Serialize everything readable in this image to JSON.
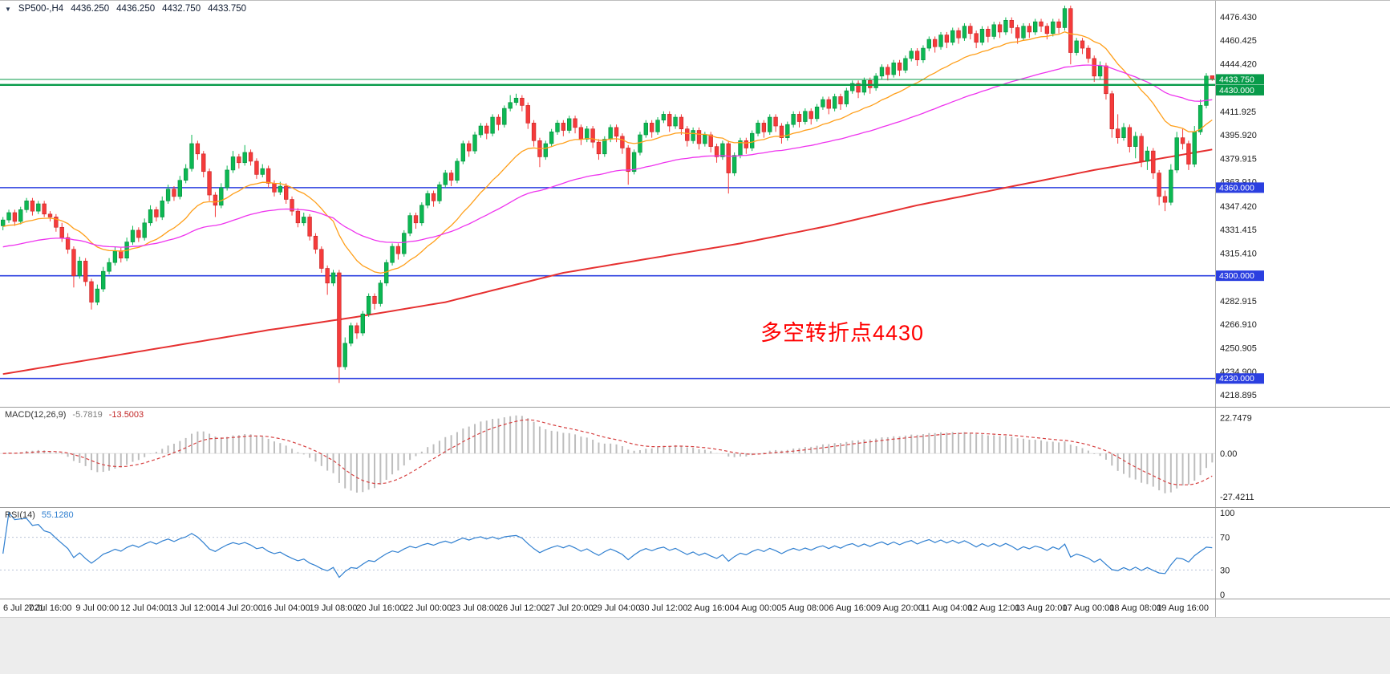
{
  "title": {
    "symbol_dropdown": "▼",
    "symbol_period": "SP500-,H4",
    "open": "4436.250",
    "high": "4436.250",
    "low": "4432.750",
    "close": "4433.750"
  },
  "annotation": {
    "text": "多空转折点4430",
    "color": "#ff0000"
  },
  "indicators": {
    "macd": {
      "label": "MACD(12,26,9)",
      "value_main": "-5.7819",
      "value_signal": "-13.5003",
      "params": {
        "fast": 12,
        "slow": 26,
        "signal": 9
      },
      "axis_labels": [
        "22.7479",
        "0.00",
        "-27.4211"
      ],
      "axis_values": [
        22.7479,
        0,
        -27.4211
      ],
      "scale_max": 26,
      "scale_min": -31,
      "histogram_color": "#bdbdbd",
      "signal_color": "#d64040"
    },
    "rsi": {
      "label": "RSI(14)",
      "value": "55.1280",
      "period": 14,
      "axis_labels": [
        "100",
        "70",
        "30",
        "0"
      ],
      "axis_values": [
        100,
        70,
        30,
        0
      ],
      "levels": [
        70,
        30
      ],
      "line_color": "#2f7fd0"
    }
  },
  "chart_data": {
    "type": "candlestick",
    "symbol": "SP500-",
    "timeframe": "H4",
    "x_label_step": 8,
    "x_labels": [
      "6 Jul 2021",
      "7 Jul 16:00",
      "9 Jul 00:00",
      "12 Jul 04:00",
      "13 Jul 12:00",
      "14 Jul 20:00",
      "16 Jul 04:00",
      "19 Jul 08:00",
      "20 Jul 16:00",
      "22 Jul 00:00",
      "23 Jul 08:00",
      "26 Jul 12:00",
      "27 Jul 20:00",
      "29 Jul 04:00",
      "30 Jul 12:00",
      "2 Aug 16:00",
      "4 Aug 00:00",
      "5 Aug 08:00",
      "6 Aug 16:00",
      "9 Aug 20:00",
      "11 Aug 04:00",
      "12 Aug 12:00",
      "13 Aug 20:00",
      "17 Aug 00:00",
      "18 Aug 08:00",
      "19 Aug 16:00"
    ],
    "y_axis": {
      "price_min": 4214,
      "price_max": 4484,
      "tick_labels": [
        "4476.430",
        "4460.425",
        "4444.420",
        "4411.925",
        "4395.920",
        "4379.915",
        "4363.910",
        "4347.420",
        "4331.415",
        "4315.410",
        "4282.915",
        "4266.910",
        "4250.905",
        "4234.900",
        "4218.895"
      ],
      "tick_values": [
        4476.43,
        4460.425,
        4444.42,
        4411.925,
        4395.92,
        4379.915,
        4363.91,
        4347.42,
        4331.415,
        4315.41,
        4282.915,
        4266.91,
        4250.905,
        4234.9,
        4218.895
      ]
    },
    "bull_color": "#0cb853",
    "bear_color": "#f53b3b",
    "bull_border": "#078a3c",
    "bear_border": "#c42424",
    "moving_averages": [
      {
        "name": "ma-fast-orange",
        "period": 20,
        "seed": 4333,
        "color": "#ff9f1a",
        "width": 1.3
      },
      {
        "name": "ma-mid-magenta",
        "period": 60,
        "seed": 4319,
        "color": "#ee33ee",
        "width": 1.3
      }
    ],
    "slow_ma": {
      "name": "ma-slow-red",
      "color": "#e63030",
      "width": 2,
      "anchors": [
        [
          0,
          4233
        ],
        [
          15,
          4243
        ],
        [
          30,
          4253
        ],
        [
          45,
          4263
        ],
        [
          60,
          4272
        ],
        [
          75,
          4282
        ],
        [
          85,
          4292
        ],
        [
          95,
          4302
        ],
        [
          110,
          4312
        ],
        [
          125,
          4322
        ],
        [
          140,
          4334
        ],
        [
          155,
          4348
        ],
        [
          170,
          4360
        ],
        [
          185,
          4372
        ],
        [
          195,
          4379
        ],
        [
          205,
          4386
        ]
      ]
    },
    "hlines": [
      {
        "price": 4433.75,
        "tag": "4433.750",
        "color": "#089b4a",
        "width": 1,
        "layer": "above"
      },
      {
        "price": 4430,
        "tag": "4430.000",
        "color": "#089b4a",
        "width": 2.4,
        "layer": "above"
      },
      {
        "price": 4360,
        "tag": "4360.000",
        "color": "#2b3fe0",
        "width": 1.6,
        "layer": "below"
      },
      {
        "price": 4300,
        "tag": "4300.000",
        "color": "#2b3fe0",
        "width": 1.6,
        "layer": "below"
      },
      {
        "price": 4230,
        "tag": "4230.000",
        "color": "#2b3fe0",
        "width": 1.6,
        "layer": "below"
      }
    ],
    "candles": [
      [
        4334,
        4340,
        4331,
        4338
      ],
      [
        4338,
        4345,
        4336,
        4343
      ],
      [
        4343,
        4345,
        4334,
        4337
      ],
      [
        4337,
        4347,
        4335,
        4345
      ],
      [
        4345,
        4353,
        4343,
        4351
      ],
      [
        4351,
        4353,
        4341,
        4344
      ],
      [
        4344,
        4351,
        4342,
        4349
      ],
      [
        4349,
        4351,
        4340,
        4342
      ],
      [
        4342,
        4344,
        4337,
        4340
      ],
      [
        4340,
        4342,
        4330,
        4333
      ],
      [
        4333,
        4336,
        4323,
        4326
      ],
      [
        4326,
        4329,
        4315,
        4318
      ],
      [
        4318,
        4320,
        4292,
        4300
      ],
      [
        4300,
        4313,
        4298,
        4310
      ],
      [
        4310,
        4312,
        4293,
        4296
      ],
      [
        4296,
        4298,
        4277,
        4282
      ],
      [
        4282,
        4294,
        4280,
        4291
      ],
      [
        4291,
        4306,
        4289,
        4303
      ],
      [
        4303,
        4312,
        4301,
        4309
      ],
      [
        4309,
        4320,
        4307,
        4317
      ],
      [
        4317,
        4319,
        4309,
        4312
      ],
      [
        4312,
        4326,
        4310,
        4323
      ],
      [
        4323,
        4334,
        4321,
        4331
      ],
      [
        4331,
        4333,
        4323,
        4326
      ],
      [
        4326,
        4339,
        4324,
        4336
      ],
      [
        4336,
        4348,
        4334,
        4345
      ],
      [
        4345,
        4347,
        4337,
        4340
      ],
      [
        4340,
        4354,
        4338,
        4351
      ],
      [
        4351,
        4362,
        4349,
        4359
      ],
      [
        4359,
        4361,
        4351,
        4354
      ],
      [
        4354,
        4368,
        4352,
        4365
      ],
      [
        4365,
        4376,
        4363,
        4373
      ],
      [
        4373,
        4396,
        4371,
        4390
      ],
      [
        4390,
        4392,
        4379,
        4383
      ],
      [
        4383,
        4385,
        4367,
        4371
      ],
      [
        4371,
        4373,
        4351,
        4355
      ],
      [
        4355,
        4357,
        4340,
        4348
      ],
      [
        4348,
        4363,
        4346,
        4360
      ],
      [
        4360,
        4375,
        4358,
        4372
      ],
      [
        4372,
        4385,
        4370,
        4381
      ],
      [
        4381,
        4383,
        4373,
        4377
      ],
      [
        4377,
        4389,
        4375,
        4384
      ],
      [
        4384,
        4386,
        4375,
        4378
      ],
      [
        4378,
        4380,
        4366,
        4369
      ],
      [
        4369,
        4376,
        4367,
        4373
      ],
      [
        4373,
        4375,
        4360,
        4363
      ],
      [
        4363,
        4365,
        4354,
        4357
      ],
      [
        4357,
        4364,
        4355,
        4361
      ],
      [
        4361,
        4363,
        4349,
        4352
      ],
      [
        4352,
        4354,
        4341,
        4344
      ],
      [
        4344,
        4346,
        4333,
        4336
      ],
      [
        4336,
        4343,
        4334,
        4340
      ],
      [
        4340,
        4342,
        4324,
        4327
      ],
      [
        4327,
        4329,
        4315,
        4318
      ],
      [
        4318,
        4320,
        4302,
        4305
      ],
      [
        4305,
        4307,
        4287,
        4295
      ],
      [
        4295,
        4304,
        4293,
        4302
      ],
      [
        4302,
        4304,
        4227,
        4238
      ],
      [
        4238,
        4258,
        4236,
        4254
      ],
      [
        4254,
        4268,
        4252,
        4266
      ],
      [
        4266,
        4268,
        4257,
        4261
      ],
      [
        4261,
        4276,
        4259,
        4274
      ],
      [
        4274,
        4288,
        4272,
        4286
      ],
      [
        4286,
        4288,
        4277,
        4281
      ],
      [
        4281,
        4297,
        4279,
        4295
      ],
      [
        4295,
        4311,
        4293,
        4309
      ],
      [
        4309,
        4322,
        4307,
        4320
      ],
      [
        4320,
        4322,
        4311,
        4315
      ],
      [
        4315,
        4331,
        4313,
        4329
      ],
      [
        4329,
        4343,
        4327,
        4341
      ],
      [
        4341,
        4343,
        4332,
        4336
      ],
      [
        4336,
        4350,
        4334,
        4348
      ],
      [
        4348,
        4358,
        4346,
        4356
      ],
      [
        4356,
        4358,
        4347,
        4351
      ],
      [
        4351,
        4364,
        4349,
        4362
      ],
      [
        4362,
        4372,
        4360,
        4370
      ],
      [
        4370,
        4372,
        4361,
        4365
      ],
      [
        4365,
        4380,
        4363,
        4378
      ],
      [
        4378,
        4392,
        4376,
        4390
      ],
      [
        4390,
        4392,
        4381,
        4385
      ],
      [
        4385,
        4398,
        4383,
        4396
      ],
      [
        4396,
        4404,
        4394,
        4402
      ],
      [
        4402,
        4404,
        4393,
        4397
      ],
      [
        4397,
        4410,
        4395,
        4408
      ],
      [
        4408,
        4410,
        4399,
        4403
      ],
      [
        4403,
        4416,
        4401,
        4414
      ],
      [
        4414,
        4423,
        4412,
        4418
      ],
      [
        4418,
        4424,
        4416,
        4421
      ],
      [
        4421,
        4423,
        4412,
        4416
      ],
      [
        4416,
        4418,
        4400,
        4404
      ],
      [
        4404,
        4406,
        4388,
        4392
      ],
      [
        4392,
        4394,
        4374,
        4381
      ],
      [
        4381,
        4392,
        4379,
        4390
      ],
      [
        4390,
        4400,
        4388,
        4398
      ],
      [
        4398,
        4406,
        4396,
        4404
      ],
      [
        4404,
        4406,
        4395,
        4399
      ],
      [
        4399,
        4409,
        4397,
        4407
      ],
      [
        4407,
        4409,
        4397,
        4401
      ],
      [
        4401,
        4403,
        4389,
        4393
      ],
      [
        4393,
        4402,
        4391,
        4400
      ],
      [
        4400,
        4402,
        4387,
        4391
      ],
      [
        4391,
        4393,
        4379,
        4383
      ],
      [
        4383,
        4395,
        4381,
        4393
      ],
      [
        4393,
        4403,
        4391,
        4401
      ],
      [
        4401,
        4403,
        4391,
        4395
      ],
      [
        4395,
        4397,
        4383,
        4387
      ],
      [
        4387,
        4389,
        4362,
        4371
      ],
      [
        4371,
        4386,
        4369,
        4384
      ],
      [
        4384,
        4398,
        4382,
        4396
      ],
      [
        4396,
        4406,
        4394,
        4404
      ],
      [
        4404,
        4406,
        4394,
        4398
      ],
      [
        4398,
        4408,
        4396,
        4406
      ],
      [
        4406,
        4412,
        4404,
        4410
      ],
      [
        4410,
        4412,
        4398,
        4402
      ],
      [
        4402,
        4410,
        4400,
        4408
      ],
      [
        4408,
        4410,
        4396,
        4400
      ],
      [
        4400,
        4402,
        4388,
        4392
      ],
      [
        4392,
        4401,
        4390,
        4399
      ],
      [
        4399,
        4401,
        4386,
        4390
      ],
      [
        4390,
        4398,
        4388,
        4396
      ],
      [
        4396,
        4398,
        4384,
        4388
      ],
      [
        4388,
        4390,
        4377,
        4381
      ],
      [
        4381,
        4392,
        4379,
        4390
      ],
      [
        4390,
        4392,
        4356,
        4370
      ],
      [
        4370,
        4384,
        4368,
        4382
      ],
      [
        4382,
        4394,
        4380,
        4392
      ],
      [
        4392,
        4394,
        4383,
        4387
      ],
      [
        4387,
        4399,
        4385,
        4397
      ],
      [
        4397,
        4406,
        4395,
        4404
      ],
      [
        4404,
        4406,
        4394,
        4398
      ],
      [
        4398,
        4410,
        4396,
        4408
      ],
      [
        4408,
        4410,
        4398,
        4402
      ],
      [
        4402,
        4404,
        4390,
        4394
      ],
      [
        4394,
        4405,
        4392,
        4403
      ],
      [
        4403,
        4412,
        4401,
        4410
      ],
      [
        4410,
        4412,
        4401,
        4405
      ],
      [
        4405,
        4414,
        4403,
        4412
      ],
      [
        4412,
        4414,
        4403,
        4407
      ],
      [
        4407,
        4417,
        4405,
        4415
      ],
      [
        4415,
        4422,
        4413,
        4420
      ],
      [
        4420,
        4422,
        4410,
        4414
      ],
      [
        4414,
        4424,
        4412,
        4422
      ],
      [
        4422,
        4424,
        4413,
        4417
      ],
      [
        4417,
        4428,
        4415,
        4426
      ],
      [
        4426,
        4433,
        4424,
        4431
      ],
      [
        4431,
        4433,
        4421,
        4425
      ],
      [
        4425,
        4435,
        4423,
        4433
      ],
      [
        4433,
        4435,
        4424,
        4428
      ],
      [
        4428,
        4438,
        4426,
        4436
      ],
      [
        4436,
        4444,
        4434,
        4442
      ],
      [
        4442,
        4444,
        4433,
        4437
      ],
      [
        4437,
        4447,
        4435,
        4445
      ],
      [
        4445,
        4447,
        4436,
        4440
      ],
      [
        4440,
        4450,
        4438,
        4448
      ],
      [
        4448,
        4455,
        4446,
        4453
      ],
      [
        4453,
        4455,
        4443,
        4447
      ],
      [
        4447,
        4457,
        4445,
        4455
      ],
      [
        4455,
        4463,
        4453,
        4461
      ],
      [
        4461,
        4463,
        4452,
        4456
      ],
      [
        4456,
        4466,
        4454,
        4464
      ],
      [
        4464,
        4466,
        4455,
        4459
      ],
      [
        4459,
        4469,
        4457,
        4467
      ],
      [
        4467,
        4469,
        4458,
        4462
      ],
      [
        4462,
        4472,
        4460,
        4470
      ],
      [
        4470,
        4472,
        4461,
        4465
      ],
      [
        4465,
        4467,
        4455,
        4459
      ],
      [
        4459,
        4470,
        4457,
        4468
      ],
      [
        4468,
        4470,
        4459,
        4463
      ],
      [
        4463,
        4473,
        4461,
        4471
      ],
      [
        4471,
        4473,
        4462,
        4466
      ],
      [
        4466,
        4476,
        4464,
        4474
      ],
      [
        4474,
        4476,
        4465,
        4469
      ],
      [
        4469,
        4471,
        4458,
        4462
      ],
      [
        4462,
        4472,
        4460,
        4470
      ],
      [
        4470,
        4472,
        4462,
        4466
      ],
      [
        4466,
        4475,
        4464,
        4473
      ],
      [
        4473,
        4475,
        4466,
        4470
      ],
      [
        4470,
        4472,
        4461,
        4465
      ],
      [
        4465,
        4475,
        4463,
        4473
      ],
      [
        4473,
        4475,
        4465,
        4469
      ],
      [
        4469,
        4484,
        4467,
        4482
      ],
      [
        4482,
        4484,
        4444,
        4452
      ],
      [
        4452,
        4462,
        4450,
        4460
      ],
      [
        4460,
        4462,
        4451,
        4455
      ],
      [
        4455,
        4457,
        4445,
        4448
      ],
      [
        4448,
        4450,
        4432,
        4436
      ],
      [
        4436,
        4446,
        4434,
        4443
      ],
      [
        4443,
        4445,
        4420,
        4424
      ],
      [
        4424,
        4426,
        4394,
        4400
      ],
      [
        4400,
        4410,
        4390,
        4394
      ],
      [
        4394,
        4404,
        4392,
        4401
      ],
      [
        4401,
        4403,
        4384,
        4388
      ],
      [
        4388,
        4398,
        4380,
        4395
      ],
      [
        4395,
        4397,
        4374,
        4378
      ],
      [
        4378,
        4388,
        4372,
        4385
      ],
      [
        4385,
        4387,
        4366,
        4370
      ],
      [
        4370,
        4372,
        4348,
        4354
      ],
      [
        4354,
        4358,
        4344,
        4350
      ],
      [
        4350,
        4376,
        4348,
        4372
      ],
      [
        4372,
        4398,
        4370,
        4394
      ],
      [
        4394,
        4400,
        4386,
        4390
      ],
      [
        4390,
        4392,
        4372,
        4376
      ],
      [
        4376,
        4402,
        4374,
        4398
      ],
      [
        4398,
        4420,
        4396,
        4416
      ],
      [
        4416,
        4438,
        4414,
        4436
      ],
      [
        4436.25,
        4436.25,
        4432.75,
        4433.75
      ]
    ]
  }
}
